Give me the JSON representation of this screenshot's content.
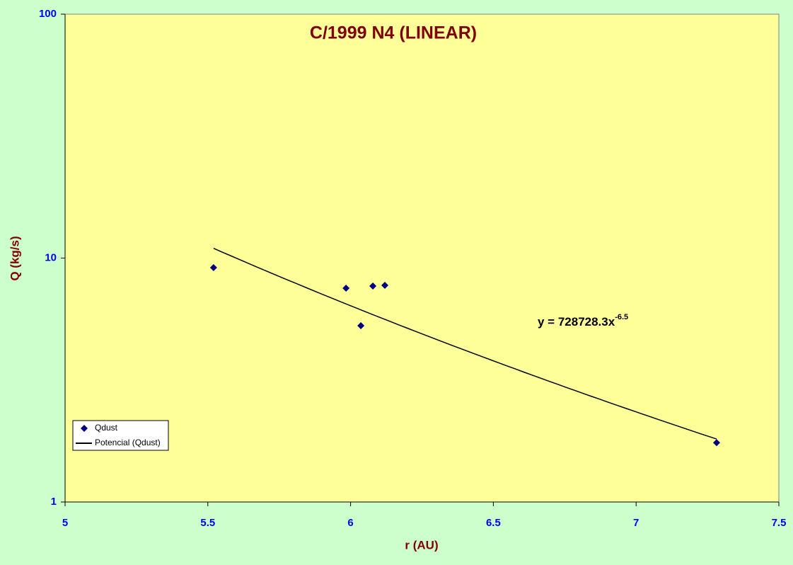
{
  "chart_data": {
    "type": "scatter",
    "title": "C/1999 N4 (LINEAR)",
    "x_label": "r (AU)",
    "y_label": "Q (kg/s)",
    "series": [
      {
        "name": "Qdust",
        "color": "#000080",
        "x": [
          5.52,
          5.984,
          6.036,
          6.078,
          6.12,
          7.282
        ],
        "values": [
          9.14,
          7.53,
          5.28,
          7.68,
          7.73,
          1.75
        ]
      }
    ],
    "trendline": {
      "name": "Potencial (Qdust)",
      "color": "#000000",
      "type": "power",
      "coefficient": 728728.3,
      "exponent": -6.5,
      "x_range": [
        5.52,
        7.282
      ],
      "equation": "y = 728728.3x",
      "equation_exponent": "-6.5"
    },
    "xlim": [
      5,
      7.5
    ],
    "xticks": [
      5,
      5.5,
      6,
      6.5,
      7,
      7.5
    ],
    "ylim": [
      1,
      100
    ],
    "yticks": [
      1,
      10,
      100
    ],
    "y_log": true,
    "legend": "lower left"
  }
}
